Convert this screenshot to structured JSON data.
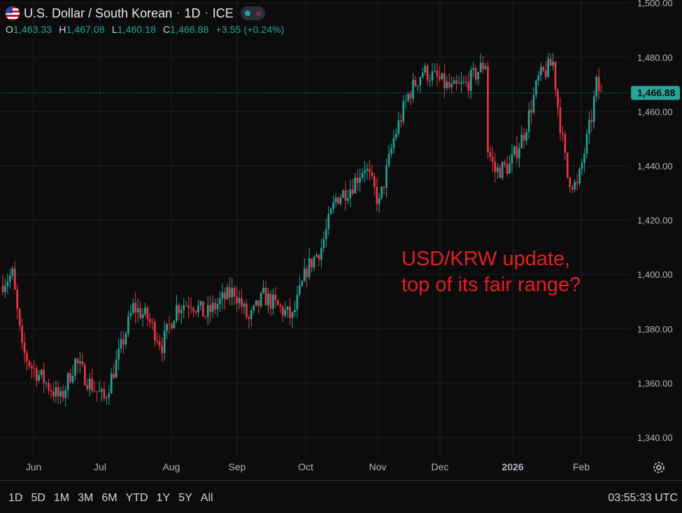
{
  "legend": {
    "title": "U.S. Dollar / South Korean",
    "interval": "1D",
    "exchange": "ICE",
    "ohlc": [
      {
        "key": "O",
        "value": "1,463.33"
      },
      {
        "key": "H",
        "value": "1,467.08"
      },
      {
        "key": "L",
        "value": "1,460.18"
      },
      {
        "key": "C",
        "value": "1,466.88"
      }
    ],
    "change": "+3.55 (+0.24%)"
  },
  "annotation": "USD/KRW update,\ntop of its fair range?",
  "time_ranges": [
    "1D",
    "5D",
    "1M",
    "3M",
    "6M",
    "YTD",
    "1Y",
    "5Y",
    "All"
  ],
  "clock": "03:55:33 UTC",
  "colors": {
    "up": "#26a69a",
    "down": "#f23645",
    "background": "#0c0c0c",
    "grid": "#1c1f26"
  },
  "chart_data": {
    "type": "candlestick",
    "title": "U.S. Dollar / South Korean · 1D · ICE",
    "ylim": [
      1336,
      1500
    ],
    "yticks": [
      "1,340.00",
      "1,360.00",
      "1,380.00",
      "1,400.00",
      "1,420.00",
      "1,440.00",
      "1,460.00",
      "1,480.00",
      "1,500.00"
    ],
    "last_price": "1,466.88",
    "x_labels": [
      "Jun",
      "Jul",
      "Aug",
      "Sep",
      "Oct",
      "Nov",
      "Dec",
      "2026",
      "Feb"
    ],
    "close_path": [
      [
        0,
        1397
      ],
      [
        4,
        1400
      ],
      [
        8,
        1372
      ],
      [
        12,
        1366
      ],
      [
        18,
        1360
      ],
      [
        24,
        1354
      ],
      [
        30,
        1368
      ],
      [
        36,
        1360
      ],
      [
        42,
        1354
      ],
      [
        48,
        1370
      ],
      [
        54,
        1388
      ],
      [
        60,
        1384
      ],
      [
        66,
        1374
      ],
      [
        72,
        1388
      ],
      [
        78,
        1390
      ],
      [
        84,
        1385
      ],
      [
        90,
        1390
      ],
      [
        96,
        1394
      ],
      [
        102,
        1383
      ],
      [
        108,
        1392
      ],
      [
        114,
        1388
      ],
      [
        120,
        1384
      ],
      [
        126,
        1402
      ],
      [
        132,
        1410
      ],
      [
        138,
        1428
      ],
      [
        144,
        1432
      ],
      [
        150,
        1440
      ],
      [
        156,
        1426
      ],
      [
        162,
        1450
      ],
      [
        168,
        1466
      ],
      [
        174,
        1475
      ],
      [
        180,
        1472
      ],
      [
        186,
        1468
      ],
      [
        192,
        1470
      ],
      [
        198,
        1476
      ],
      [
        200,
        1478
      ],
      [
        201,
        1446
      ],
      [
        204,
        1438
      ],
      [
        210,
        1440
      ],
      [
        216,
        1452
      ],
      [
        222,
        1472
      ],
      [
        228,
        1478
      ],
      [
        230,
        1462
      ],
      [
        234,
        1436
      ],
      [
        238,
        1432
      ],
      [
        244,
        1458
      ],
      [
        246,
        1470
      ],
      [
        248,
        1466
      ]
    ]
  }
}
